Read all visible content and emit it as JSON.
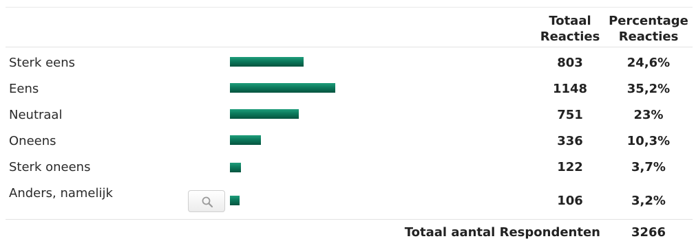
{
  "chart_data": {
    "type": "bar",
    "orientation": "horizontal",
    "headers": {
      "total_line1": "Totaal",
      "total_line2": "Reacties",
      "pct_line1": "Percentage",
      "pct_line2": "Reacties"
    },
    "rows": [
      {
        "label": "Sterk eens",
        "count": "803",
        "value": 24.6,
        "pct": "24,6%"
      },
      {
        "label": "Eens",
        "count": "1148",
        "value": 35.2,
        "pct": "35,2%"
      },
      {
        "label": "Neutraal",
        "count": "751",
        "value": 23,
        "pct": "23%"
      },
      {
        "label": "Oneens",
        "count": "336",
        "value": 10.3,
        "pct": "10,3%"
      },
      {
        "label": "Sterk oneens",
        "count": "122",
        "value": 3.7,
        "pct": "3,7%"
      },
      {
        "label": "Anders, namelijk",
        "count": "106",
        "value": 3.2,
        "pct": "3,2%"
      }
    ],
    "footer": {
      "label": "Totaal aantal Respondenten",
      "value": "3266"
    },
    "bar_color": "#0c7a5c"
  },
  "search_button": {
    "icon": "magnifier-icon"
  }
}
